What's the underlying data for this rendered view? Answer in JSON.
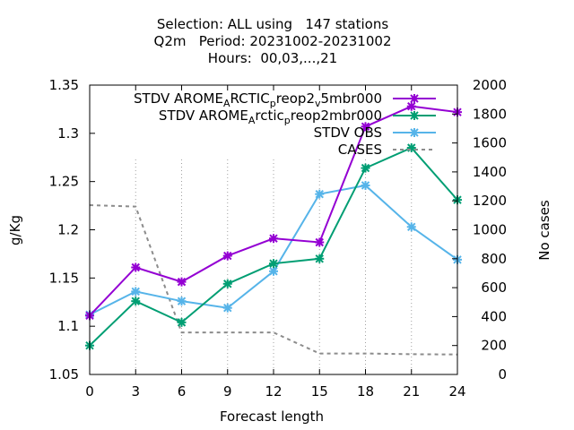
{
  "chart_data": {
    "type": "line",
    "title_lines": [
      "Selection: ALL using   147 stations",
      "Q2m   Period: 20231002-20231002",
      "Hours:  00,03,...,21"
    ],
    "xlabel": "Forecast length",
    "ylabel": "g/Kg",
    "y2label": "No cases",
    "x": [
      0,
      3,
      6,
      9,
      12,
      15,
      18,
      21,
      24
    ],
    "xticks": [
      "0",
      "3",
      "6",
      "9",
      "12",
      "15",
      "18",
      "21",
      "24"
    ],
    "xlim": [
      0,
      24
    ],
    "ylim": [
      1.05,
      1.35
    ],
    "yticks": [
      "1.05",
      "1.1",
      "1.15",
      "1.2",
      "1.25",
      "1.3",
      "1.35"
    ],
    "y2lim": [
      0,
      2000
    ],
    "y2ticks": [
      "0",
      "200",
      "400",
      "600",
      "800",
      "1000",
      "1200",
      "1400",
      "1600",
      "1800",
      "2000"
    ],
    "grid": "vertical dotted at x ticks",
    "legend_position": "top-right",
    "series": [
      {
        "name": "STDV AROME_ARCTIC_preop2_v5mbr000",
        "legend_parts": [
          [
            "STDV AROME",
            "base"
          ],
          [
            "A",
            "sub"
          ],
          [
            "RCTIC",
            "base"
          ],
          [
            "p",
            "sub"
          ],
          [
            "reop2",
            "base"
          ],
          [
            "v",
            "sub"
          ],
          [
            "5mbr000",
            "base"
          ]
        ],
        "color": "#9400d3",
        "axis": "y",
        "style": "solid",
        "values": [
          1.111,
          1.161,
          1.146,
          1.173,
          1.191,
          1.187,
          1.307,
          1.328,
          1.322
        ]
      },
      {
        "name": "STDV AROME_Arctic_preop2mbr000",
        "legend_parts": [
          [
            "STDV AROME",
            "base"
          ],
          [
            "A",
            "sub"
          ],
          [
            "rctic",
            "base"
          ],
          [
            "p",
            "sub"
          ],
          [
            "reop2mbr000",
            "base"
          ]
        ],
        "color": "#009e73",
        "axis": "y",
        "style": "solid",
        "values": [
          1.08,
          1.126,
          1.104,
          1.144,
          1.165,
          1.17,
          1.264,
          1.285,
          1.231
        ]
      },
      {
        "name": "STDV OBS",
        "legend_parts": [
          [
            "STDV OBS",
            "base"
          ]
        ],
        "color": "#56b4e9",
        "axis": "y",
        "style": "solid",
        "values": [
          1.112,
          1.136,
          1.126,
          1.119,
          1.157,
          1.237,
          1.246,
          1.203,
          1.169
        ]
      },
      {
        "name": "CASES",
        "legend_parts": [
          [
            "CASES",
            "base"
          ]
        ],
        "color": "#8c8c8c",
        "axis": "y2",
        "style": "dashed",
        "values": [
          1170,
          1160,
          290,
          290,
          290,
          145,
          145,
          140,
          138
        ]
      }
    ]
  }
}
